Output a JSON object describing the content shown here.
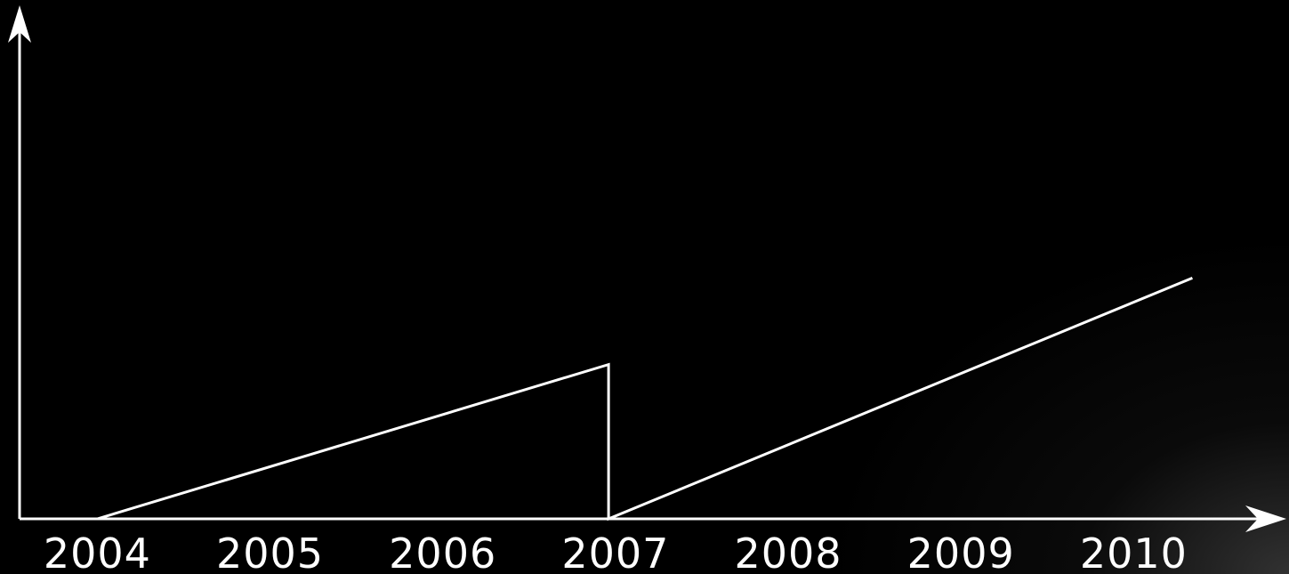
{
  "chart_data": {
    "type": "line",
    "title": "",
    "xlabel": "",
    "ylabel": "",
    "x_ticks": [
      "2004",
      "2005",
      "2006",
      "2007",
      "2008",
      "2009",
      "2010"
    ],
    "xlim": [
      2003.55,
      2010.75
    ],
    "ylim": [
      0,
      1.6
    ],
    "grid": false,
    "legend": "none",
    "series": [
      {
        "points": [
          {
            "x": 2004.0,
            "y": 0.0
          },
          {
            "x": 2006.96,
            "y": 0.5
          },
          {
            "x": 2006.96,
            "y": 0.0
          },
          {
            "x": 2010.34,
            "y": 0.78
          }
        ]
      }
    ],
    "colors": {
      "background": "#000000",
      "foreground": "#ffffff"
    }
  }
}
